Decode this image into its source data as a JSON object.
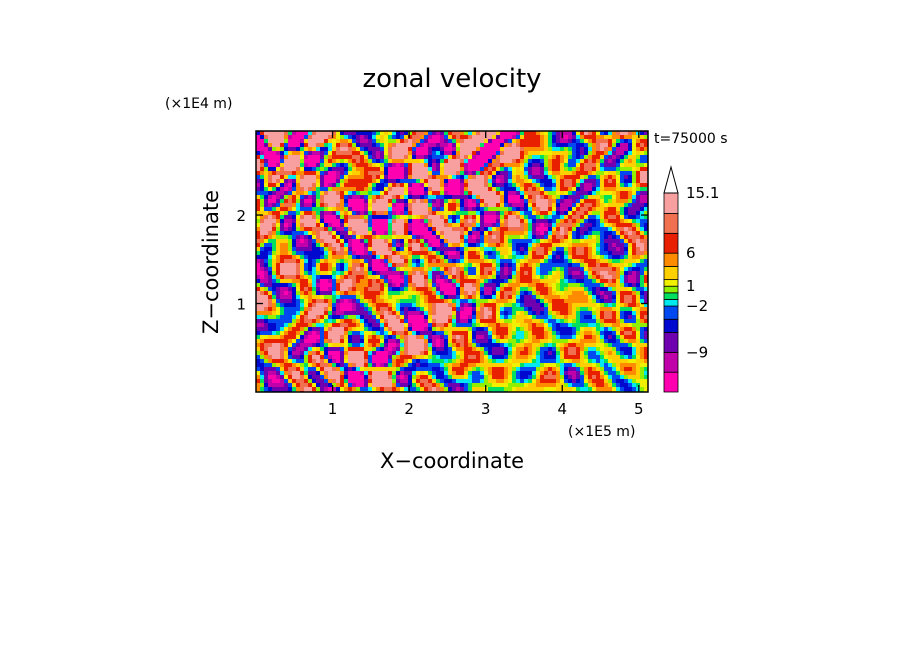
{
  "chart_data": {
    "type": "heatmap",
    "title": "zonal velocity",
    "xlabel": "X−coordinate",
    "ylabel": "Z−coordinate",
    "x_multiplier": "(×1E5 m)",
    "y_multiplier": "(×1E4 m)",
    "time_label": "t=75000 s",
    "x_ticks": [
      "1",
      "2",
      "3",
      "4",
      "5"
    ],
    "y_ticks": [
      "1",
      "2"
    ],
    "xlim": [
      0,
      5.12
    ],
    "ylim": [
      0,
      2.95
    ],
    "x_tick_values": [
      1,
      2,
      3,
      4,
      5
    ],
    "y_tick_values": [
      1,
      2
    ],
    "colorbar": {
      "levels": [
        -15,
        -12,
        -9,
        -6,
        -4,
        -2,
        -1,
        0,
        1,
        2,
        4,
        6,
        9,
        12,
        15.1
      ],
      "colors": [
        "#ff00b0",
        "#c000a8",
        "#6e00b0",
        "#0008d0",
        "#0048f0",
        "#00e8f0",
        "#00e060",
        "#90f000",
        "#f0f000",
        "#ffd000",
        "#ff8c00",
        "#e82000",
        "#f07050",
        "#f8a0a0"
      ],
      "tick_labels": [
        "15.1",
        "6",
        "1",
        "−2",
        "−9"
      ],
      "tick_values": [
        15.1,
        6,
        1,
        -2,
        -9
      ]
    }
  }
}
